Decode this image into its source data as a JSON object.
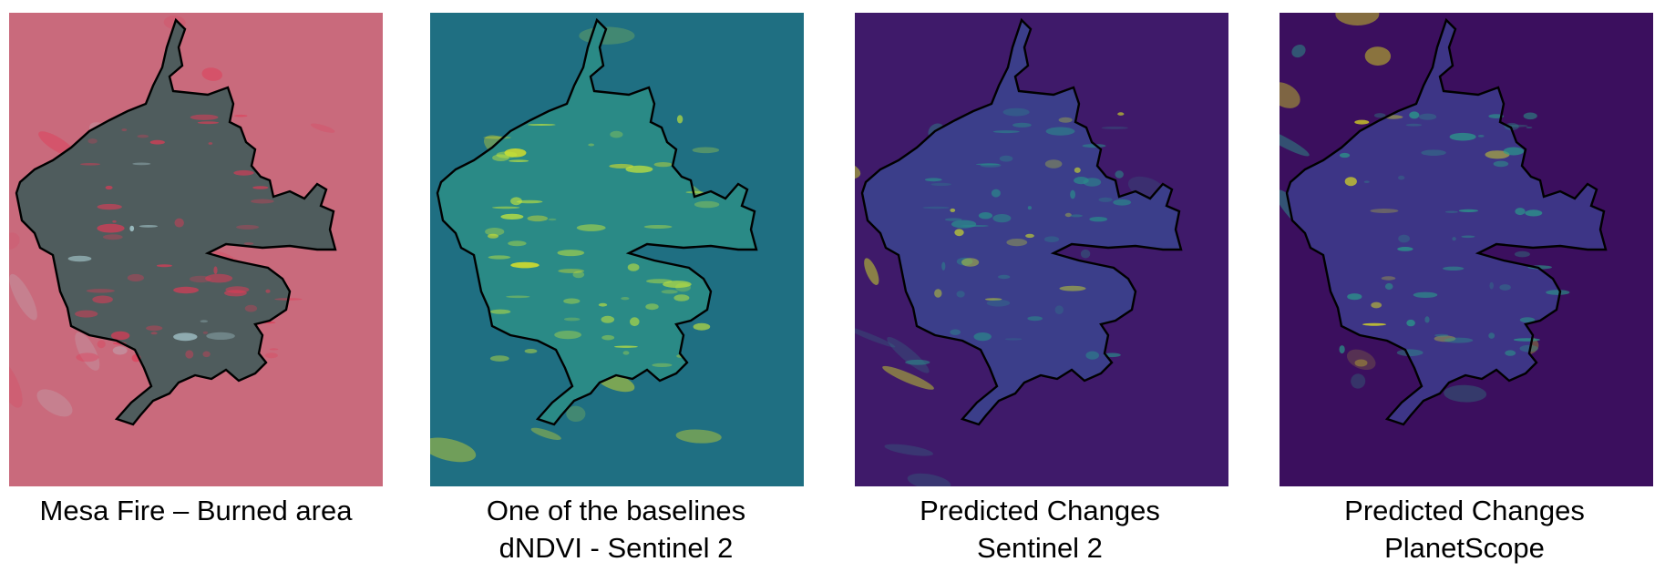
{
  "panels": [
    {
      "id": "burned-area",
      "caption_lines": [
        "Mesa Fire – Burned area"
      ],
      "colors": {
        "background": "#c96a7c",
        "inside": "#4f5c5d",
        "accent": "#e23a56",
        "highlight": "#b8dfe5"
      }
    },
    {
      "id": "dndvi",
      "caption_lines": [
        "One of the baselines",
        "dNDVI - Sentinel 2"
      ],
      "colors": {
        "background": "#1f6f82",
        "inside": "#2a8a86",
        "accent": "#c6e63a",
        "highlight": "#f4ec1a"
      }
    },
    {
      "id": "pred-sentinel",
      "caption_lines": [
        "Predicted Changes",
        "Sentinel 2"
      ],
      "colors": {
        "background": "#3f1a6a",
        "inside": "#3b3e8a",
        "accent": "#2a8c8a",
        "highlight": "#d6e524"
      }
    },
    {
      "id": "pred-planetscope",
      "caption_lines": [
        "Predicted Changes",
        "PlanetScope"
      ],
      "colors": {
        "background": "#3b0f5e",
        "inside": "#3d3586",
        "accent": "#2a9c8a",
        "highlight": "#e4e51c"
      }
    }
  ]
}
